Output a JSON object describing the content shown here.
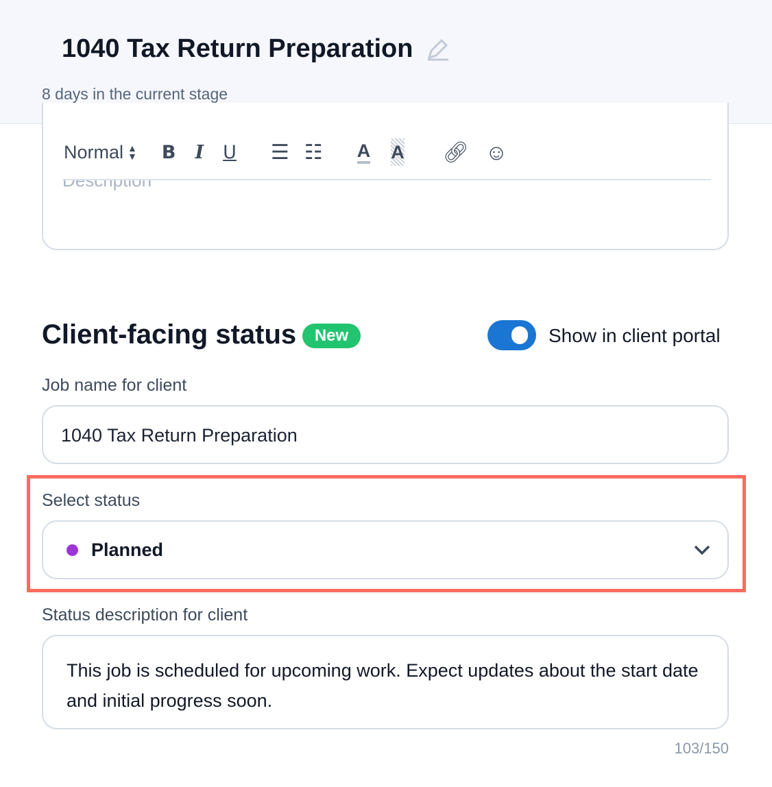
{
  "header": {
    "title": "1040 Tax Return Preparation",
    "subtitle": "8 days in the current stage"
  },
  "editor": {
    "format": "Normal",
    "placeholder": "Description",
    "tools": [
      "bold-icon",
      "italic-icon",
      "underline-icon",
      "ordered-list-icon",
      "bullet-list-icon",
      "text-color-icon",
      "highlight-icon",
      "link-icon",
      "emoji-icon"
    ]
  },
  "client_status": {
    "heading": "Client-facing status",
    "badge": "New",
    "badge_color": "#22c46f",
    "toggle_label": "Show in client portal",
    "toggle_on": true,
    "toggle_color": "#1a76d2",
    "job_name_label": "Job name for client",
    "job_name_value": "1040 Tax Return Preparation",
    "status_label": "Select status",
    "status_value": "Planned",
    "status_dot_color": "#9b35d6",
    "desc_label": "Status description for client",
    "desc_value": "This job is scheduled for upcoming work. Expect updates about the start date and initial progress soon.",
    "char_count": "103/150"
  },
  "highlight_color": "#fc6b60"
}
